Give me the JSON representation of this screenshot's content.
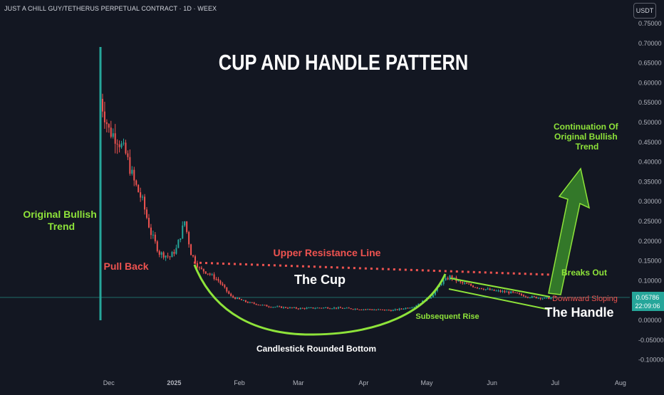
{
  "header": {
    "symbol_title": "JUST A CHILL GUY/TETHERUS PERPETUAL CONTRACT · 1D · WEEX",
    "currency": "USDT"
  },
  "price_label": {
    "price": "0.05786",
    "countdown": "22:09:06"
  },
  "annotations": {
    "main_title": "CUP AND HANDLE PATTERN",
    "original_bullish_trend": [
      "Original Bullish",
      "Trend"
    ],
    "pull_back": "Pull Back",
    "upper_resistance_line": "Upper Resistance Line",
    "the_cup": "The Cup",
    "candlestick_rounded_bottom": "Candlestick Rounded Bottom",
    "subsequent_rise": "Subsequent Rise",
    "breaks_out": "Breaks Out",
    "downward_sloping": "Downward Sloping",
    "the_handle": "The Handle",
    "continuation": [
      "Continuation Of",
      "Original Bullish",
      "Trend"
    ]
  },
  "colors": {
    "background": "#131722",
    "bullish": "#26a69a",
    "bearish": "#ef5350",
    "annotation_green": "#8ee33a",
    "annotation_red": "#ef5350",
    "price_tag": "#26a69a"
  },
  "chart_data": {
    "type": "candlestick",
    "y_axis": {
      "range": [
        -0.11,
        0.76
      ],
      "ticks": [
        "0.75000",
        "0.70000",
        "0.65000",
        "0.60000",
        "0.55000",
        "0.50000",
        "0.45000",
        "0.40000",
        "0.35000",
        "0.30000",
        "0.25000",
        "0.20000",
        "0.15000",
        "0.10000",
        "0.05000",
        "0.00000",
        "-0.05000",
        "-0.10000"
      ]
    },
    "x_axis": {
      "ticks": [
        "Dec",
        "2025",
        "Feb",
        "Mar",
        "Apr",
        "May",
        "Jun",
        "Jul",
        "Aug"
      ]
    },
    "series": [
      {
        "date": "2024-11-27",
        "close": 0.56
      },
      {
        "date": "2024-12-01",
        "close": 0.48
      },
      {
        "date": "2024-12-05",
        "close": 0.46
      },
      {
        "date": "2024-12-09",
        "close": 0.42
      },
      {
        "date": "2024-12-13",
        "close": 0.35
      },
      {
        "date": "2024-12-17",
        "close": 0.3
      },
      {
        "date": "2024-12-21",
        "close": 0.22
      },
      {
        "date": "2024-12-25",
        "close": 0.17
      },
      {
        "date": "2024-12-30",
        "close": 0.16
      },
      {
        "date": "2025-01-02",
        "close": 0.18
      },
      {
        "date": "2025-01-06",
        "close": 0.25
      },
      {
        "date": "2025-01-09",
        "close": 0.17
      },
      {
        "date": "2025-01-13",
        "close": 0.13
      },
      {
        "date": "2025-01-17",
        "close": 0.12
      },
      {
        "date": "2025-01-22",
        "close": 0.1
      },
      {
        "date": "2025-01-28",
        "close": 0.06
      },
      {
        "date": "2025-02-05",
        "close": 0.045
      },
      {
        "date": "2025-02-15",
        "close": 0.035
      },
      {
        "date": "2025-03-01",
        "close": 0.03
      },
      {
        "date": "2025-03-15",
        "close": 0.032
      },
      {
        "date": "2025-04-01",
        "close": 0.028
      },
      {
        "date": "2025-04-15",
        "close": 0.025
      },
      {
        "date": "2025-04-25",
        "close": 0.035
      },
      {
        "date": "2025-05-03",
        "close": 0.06
      },
      {
        "date": "2025-05-08",
        "close": 0.095
      },
      {
        "date": "2025-05-12",
        "close": 0.11
      },
      {
        "date": "2025-05-17",
        "close": 0.095
      },
      {
        "date": "2025-05-24",
        "close": 0.085
      },
      {
        "date": "2025-06-01",
        "close": 0.075
      },
      {
        "date": "2025-06-10",
        "close": 0.07
      },
      {
        "date": "2025-06-18",
        "close": 0.06
      },
      {
        "date": "2025-06-26",
        "close": 0.055
      },
      {
        "date": "2025-07-02",
        "close": 0.058
      }
    ],
    "current_price": 0.05786
  }
}
